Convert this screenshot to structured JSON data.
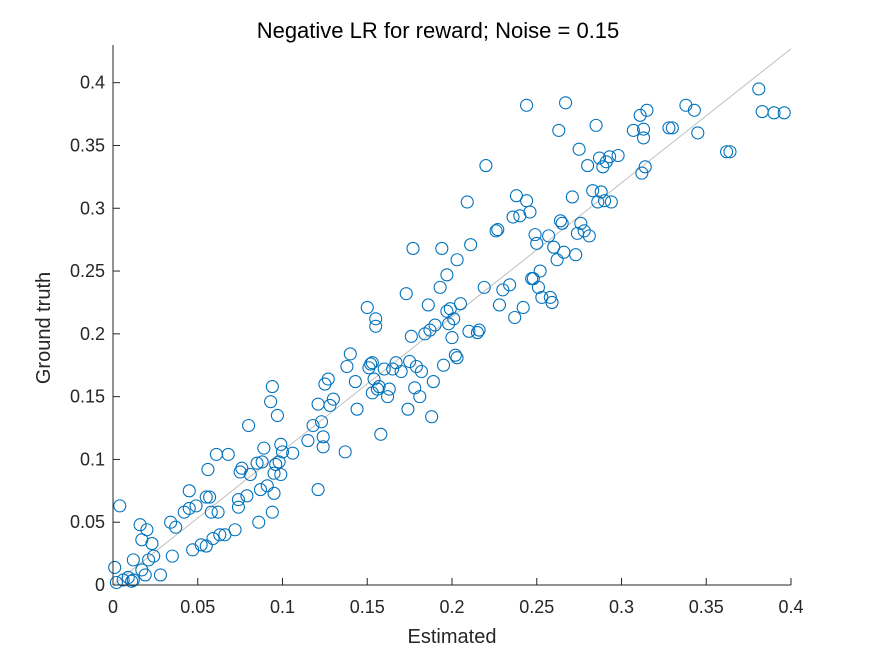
{
  "chart_data": {
    "type": "scatter",
    "title": "Negative LR for reward; Noise = 0.15",
    "xlabel": "Estimated",
    "ylabel": "Ground truth",
    "xlim": [
      0,
      0.4
    ],
    "ylim": [
      0,
      0.43
    ],
    "xticks": [
      "0",
      "0.05",
      "0.1",
      "0.15",
      "0.2",
      "0.25",
      "0.3",
      "0.35",
      "0.4"
    ],
    "yticks": [
      "0",
      "0.05",
      "0.1",
      "0.15",
      "0.2",
      "0.25",
      "0.3",
      "0.35",
      "0.4"
    ],
    "grid": false,
    "marker_color": "#0072BD",
    "reference_line_color": "#c0c0c0",
    "reference_line": [
      [
        0,
        0
      ],
      [
        0.4,
        0.427
      ]
    ],
    "series": [
      {
        "points": [
          [
            0.001,
            0.014
          ],
          [
            0.002,
            0.002
          ],
          [
            0.004,
            0.063
          ],
          [
            0.006,
            0.004
          ],
          [
            0.009,
            0.006
          ],
          [
            0.011,
            0.003
          ],
          [
            0.012,
            0.004
          ],
          [
            0.012,
            0.02
          ],
          [
            0.016,
            0.048
          ],
          [
            0.017,
            0.036
          ],
          [
            0.017,
            0.012
          ],
          [
            0.019,
            0.008
          ],
          [
            0.02,
            0.044
          ],
          [
            0.021,
            0.02
          ],
          [
            0.023,
            0.033
          ],
          [
            0.024,
            0.023
          ],
          [
            0.028,
            0.008
          ],
          [
            0.034,
            0.05
          ],
          [
            0.035,
            0.023
          ],
          [
            0.037,
            0.046
          ],
          [
            0.042,
            0.058
          ],
          [
            0.045,
            0.075
          ],
          [
            0.045,
            0.061
          ],
          [
            0.047,
            0.028
          ],
          [
            0.049,
            0.063
          ],
          [
            0.052,
            0.032
          ],
          [
            0.055,
            0.031
          ],
          [
            0.055,
            0.07
          ],
          [
            0.056,
            0.092
          ],
          [
            0.057,
            0.07
          ],
          [
            0.058,
            0.058
          ],
          [
            0.059,
            0.037
          ],
          [
            0.061,
            0.104
          ],
          [
            0.062,
            0.058
          ],
          [
            0.063,
            0.04
          ],
          [
            0.066,
            0.04
          ],
          [
            0.068,
            0.104
          ],
          [
            0.072,
            0.044
          ],
          [
            0.074,
            0.068
          ],
          [
            0.074,
            0.062
          ],
          [
            0.075,
            0.09
          ],
          [
            0.076,
            0.093
          ],
          [
            0.079,
            0.071
          ],
          [
            0.08,
            0.127
          ],
          [
            0.081,
            0.088
          ],
          [
            0.085,
            0.097
          ],
          [
            0.086,
            0.05
          ],
          [
            0.087,
            0.076
          ],
          [
            0.088,
            0.098
          ],
          [
            0.089,
            0.109
          ],
          [
            0.091,
            0.079
          ],
          [
            0.093,
            0.146
          ],
          [
            0.094,
            0.158
          ],
          [
            0.094,
            0.058
          ],
          [
            0.095,
            0.073
          ],
          [
            0.095,
            0.089
          ],
          [
            0.096,
            0.096
          ],
          [
            0.097,
            0.135
          ],
          [
            0.098,
            0.098
          ],
          [
            0.099,
            0.088
          ],
          [
            0.099,
            0.112
          ],
          [
            0.1,
            0.106
          ],
          [
            0.106,
            0.105
          ],
          [
            0.115,
            0.115
          ],
          [
            0.118,
            0.127
          ],
          [
            0.121,
            0.076
          ],
          [
            0.121,
            0.144
          ],
          [
            0.123,
            0.13
          ],
          [
            0.124,
            0.118
          ],
          [
            0.124,
            0.11
          ],
          [
            0.125,
            0.16
          ],
          [
            0.127,
            0.164
          ],
          [
            0.128,
            0.143
          ],
          [
            0.13,
            0.148
          ],
          [
            0.137,
            0.106
          ],
          [
            0.138,
            0.174
          ],
          [
            0.14,
            0.184
          ],
          [
            0.143,
            0.162
          ],
          [
            0.144,
            0.14
          ],
          [
            0.15,
            0.221
          ],
          [
            0.151,
            0.173
          ],
          [
            0.152,
            0.176
          ],
          [
            0.153,
            0.153
          ],
          [
            0.153,
            0.177
          ],
          [
            0.154,
            0.164
          ],
          [
            0.155,
            0.212
          ],
          [
            0.155,
            0.206
          ],
          [
            0.156,
            0.156
          ],
          [
            0.157,
            0.158
          ],
          [
            0.158,
            0.12
          ],
          [
            0.16,
            0.172
          ],
          [
            0.162,
            0.15
          ],
          [
            0.163,
            0.156
          ],
          [
            0.165,
            0.172
          ],
          [
            0.167,
            0.177
          ],
          [
            0.17,
            0.17
          ],
          [
            0.173,
            0.232
          ],
          [
            0.174,
            0.14
          ],
          [
            0.175,
            0.178
          ],
          [
            0.176,
            0.198
          ],
          [
            0.177,
            0.268
          ],
          [
            0.178,
            0.157
          ],
          [
            0.179,
            0.174
          ],
          [
            0.181,
            0.15
          ],
          [
            0.182,
            0.17
          ],
          [
            0.184,
            0.2
          ],
          [
            0.186,
            0.223
          ],
          [
            0.187,
            0.203
          ],
          [
            0.188,
            0.134
          ],
          [
            0.189,
            0.162
          ],
          [
            0.19,
            0.207
          ],
          [
            0.193,
            0.237
          ],
          [
            0.194,
            0.268
          ],
          [
            0.195,
            0.175
          ],
          [
            0.197,
            0.247
          ],
          [
            0.197,
            0.218
          ],
          [
            0.198,
            0.208
          ],
          [
            0.199,
            0.22
          ],
          [
            0.2,
            0.197
          ],
          [
            0.201,
            0.212
          ],
          [
            0.202,
            0.183
          ],
          [
            0.203,
            0.181
          ],
          [
            0.203,
            0.259
          ],
          [
            0.205,
            0.224
          ],
          [
            0.209,
            0.305
          ],
          [
            0.21,
            0.202
          ],
          [
            0.211,
            0.271
          ],
          [
            0.215,
            0.201
          ],
          [
            0.216,
            0.203
          ],
          [
            0.219,
            0.237
          ],
          [
            0.22,
            0.334
          ],
          [
            0.226,
            0.282
          ],
          [
            0.227,
            0.283
          ],
          [
            0.228,
            0.223
          ],
          [
            0.23,
            0.235
          ],
          [
            0.234,
            0.239
          ],
          [
            0.236,
            0.293
          ],
          [
            0.237,
            0.213
          ],
          [
            0.238,
            0.31
          ],
          [
            0.24,
            0.294
          ],
          [
            0.242,
            0.221
          ],
          [
            0.244,
            0.382
          ],
          [
            0.244,
            0.306
          ],
          [
            0.246,
            0.297
          ],
          [
            0.247,
            0.244
          ],
          [
            0.248,
            0.244
          ],
          [
            0.249,
            0.279
          ],
          [
            0.25,
            0.272
          ],
          [
            0.251,
            0.237
          ],
          [
            0.252,
            0.25
          ],
          [
            0.253,
            0.229
          ],
          [
            0.257,
            0.278
          ],
          [
            0.258,
            0.229
          ],
          [
            0.259,
            0.225
          ],
          [
            0.26,
            0.269
          ],
          [
            0.262,
            0.259
          ],
          [
            0.263,
            0.362
          ],
          [
            0.264,
            0.29
          ],
          [
            0.265,
            0.288
          ],
          [
            0.266,
            0.265
          ],
          [
            0.267,
            0.384
          ],
          [
            0.271,
            0.309
          ],
          [
            0.273,
            0.263
          ],
          [
            0.274,
            0.28
          ],
          [
            0.275,
            0.347
          ],
          [
            0.276,
            0.288
          ],
          [
            0.278,
            0.282
          ],
          [
            0.28,
            0.334
          ],
          [
            0.281,
            0.278
          ],
          [
            0.283,
            0.314
          ],
          [
            0.285,
            0.366
          ],
          [
            0.286,
            0.305
          ],
          [
            0.287,
            0.34
          ],
          [
            0.288,
            0.313
          ],
          [
            0.289,
            0.333
          ],
          [
            0.29,
            0.306
          ],
          [
            0.291,
            0.337
          ],
          [
            0.293,
            0.341
          ],
          [
            0.294,
            0.305
          ],
          [
            0.298,
            0.342
          ],
          [
            0.307,
            0.362
          ],
          [
            0.311,
            0.374
          ],
          [
            0.312,
            0.328
          ],
          [
            0.313,
            0.356
          ],
          [
            0.313,
            0.363
          ],
          [
            0.314,
            0.333
          ],
          [
            0.315,
            0.378
          ],
          [
            0.328,
            0.364
          ],
          [
            0.33,
            0.364
          ],
          [
            0.338,
            0.382
          ],
          [
            0.343,
            0.378
          ],
          [
            0.345,
            0.36
          ],
          [
            0.362,
            0.345
          ],
          [
            0.364,
            0.345
          ],
          [
            0.381,
            0.395
          ],
          [
            0.383,
            0.377
          ],
          [
            0.39,
            0.376
          ],
          [
            0.396,
            0.376
          ]
        ]
      }
    ]
  }
}
